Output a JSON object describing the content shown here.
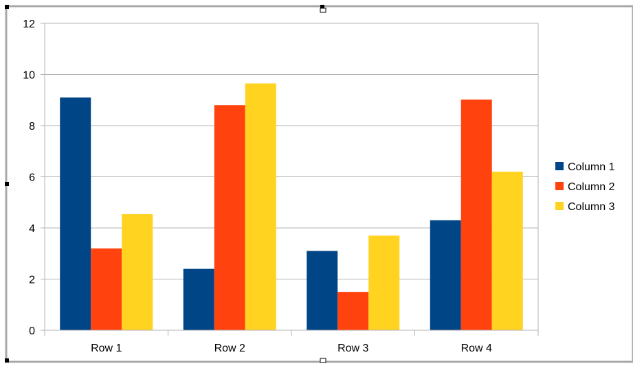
{
  "chart_data": {
    "type": "bar",
    "categories": [
      "Row 1",
      "Row 2",
      "Row 3",
      "Row 4"
    ],
    "series": [
      {
        "name": "Column 1",
        "color": "#004586",
        "values": [
          9.1,
          2.4,
          3.1,
          4.3
        ]
      },
      {
        "name": "Column 2",
        "color": "#ff420e",
        "values": [
          3.2,
          8.8,
          1.5,
          9.02
        ]
      },
      {
        "name": "Column 3",
        "color": "#ffd320",
        "values": [
          4.54,
          9.65,
          3.7,
          6.2
        ]
      }
    ],
    "ylim": [
      0,
      12
    ],
    "yticks": [
      0,
      2,
      4,
      6,
      8,
      10,
      12
    ],
    "grid": true,
    "legend_position": "right",
    "title": "",
    "xlabel": "",
    "ylabel": ""
  }
}
